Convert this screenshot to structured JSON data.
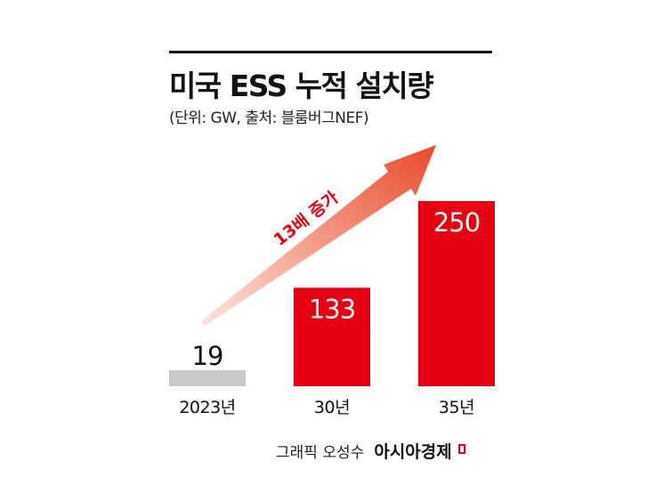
{
  "header": {
    "title": "미국 ESS 누적 설치량",
    "subtitle": "(단위: GW, 출처: 블룸버그NEF)"
  },
  "chart_data": {
    "type": "bar",
    "categories": [
      "2023년",
      "30년",
      "35년"
    ],
    "values": [
      19,
      133,
      250
    ],
    "ylim": [
      0,
      250
    ],
    "grid": false,
    "legend": "none",
    "annotation": "13배 증가",
    "colors": {
      "baseline": "#c8c8c8",
      "highlight": "#e60012",
      "arrow_start": "#fde6df",
      "arrow_end": "#e84a2a"
    }
  },
  "footer": {
    "credit": "그래픽 오성수",
    "brand": "아시아경제"
  }
}
